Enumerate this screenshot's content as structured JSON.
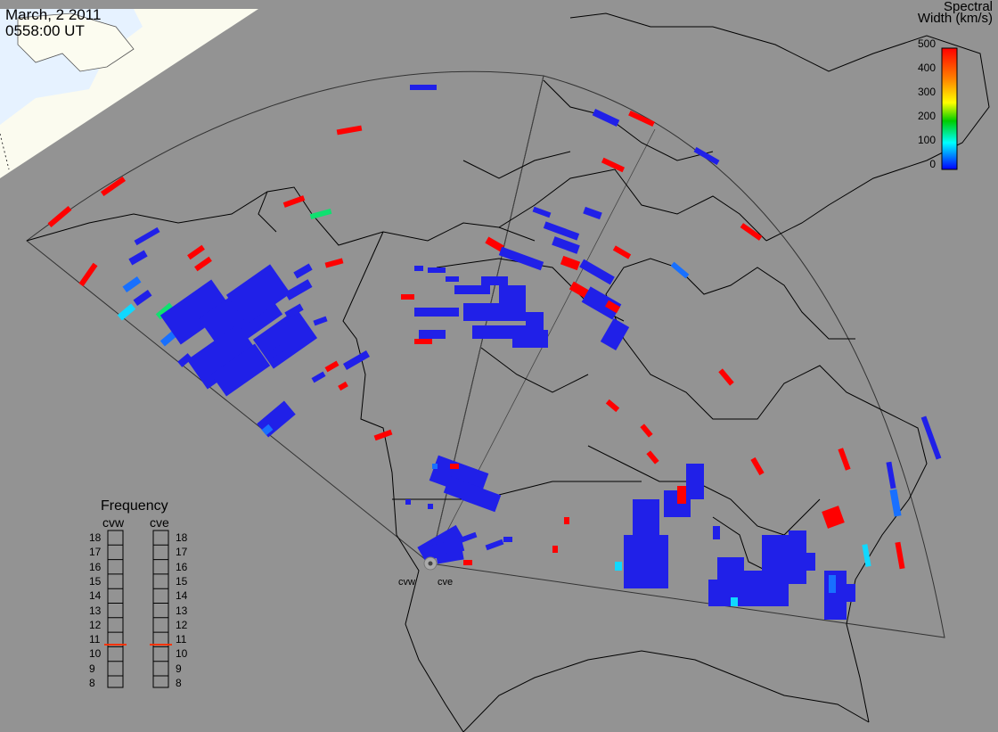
{
  "header": {
    "date": "March, 2 2011",
    "time": "0558:00 UT"
  },
  "colorbar": {
    "title_line1": "Spectral",
    "title_line2": "Width (km/s)",
    "ticks": [
      "500",
      "400",
      "300",
      "200",
      "100",
      "0"
    ],
    "colors": [
      "#ff0000",
      "#ff8000",
      "#ffff00",
      "#00cc00",
      "#00ffff",
      "#0000ff"
    ]
  },
  "radars": [
    {
      "name": "cvw",
      "freq_mhz": 11
    },
    {
      "name": "cve",
      "freq_mhz": 11
    }
  ],
  "frequency_panel": {
    "title": "Frequency",
    "scale": [
      "18",
      "17",
      "16",
      "15",
      "14",
      "13",
      "12",
      "11",
      "10",
      "9",
      "8"
    ]
  },
  "colors": {
    "background": "#939393",
    "night_land": "#fbfbf0",
    "day_ocean": "#e8f4ff",
    "coast": "#000000",
    "echo_low": "#2020e8",
    "echo_high": "#ff0000",
    "marker": "#ff3300"
  }
}
